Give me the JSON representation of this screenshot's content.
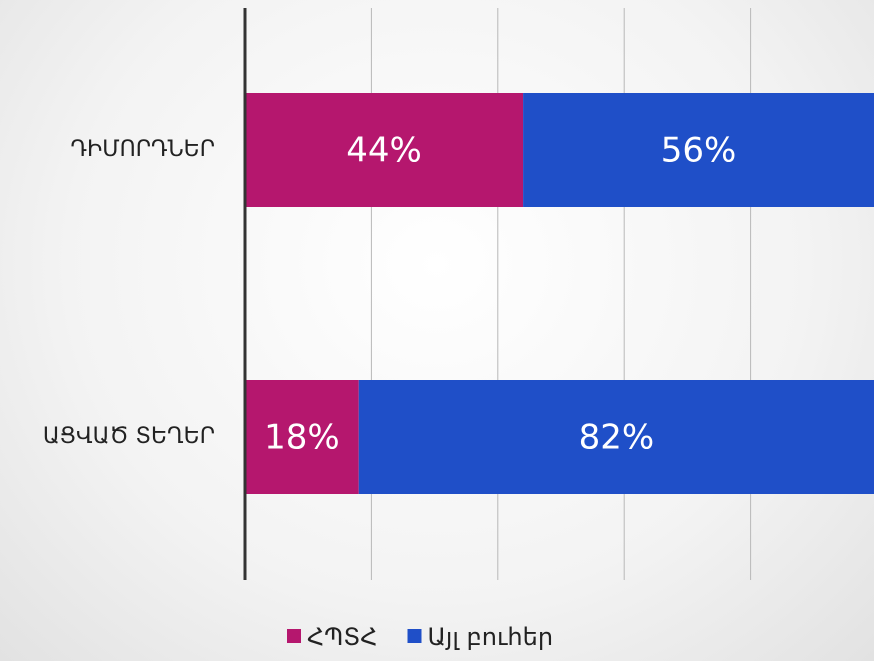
{
  "chart_data": {
    "type": "stacked_barh",
    "categories": [
      "ԴԻՄՈՐԴՆԵՐ",
      "ԱՑՎԱԾ ՏԵՂԵՐ"
    ],
    "series": [
      {
        "name": "ՀՊՏՀ",
        "color": "#b5176e",
        "values": [
          44,
          18
        ],
        "value_labels": [
          "44%",
          "18%"
        ]
      },
      {
        "name": "Այլ բուհեր",
        "color": "#1f4fc8",
        "values": [
          56,
          82
        ],
        "value_labels": [
          "56%",
          "82%"
        ]
      }
    ],
    "xlim": [
      0,
      100
    ],
    "xticks": [
      0,
      20,
      40,
      60,
      80,
      100
    ],
    "grid": true,
    "legend": "bottom"
  }
}
